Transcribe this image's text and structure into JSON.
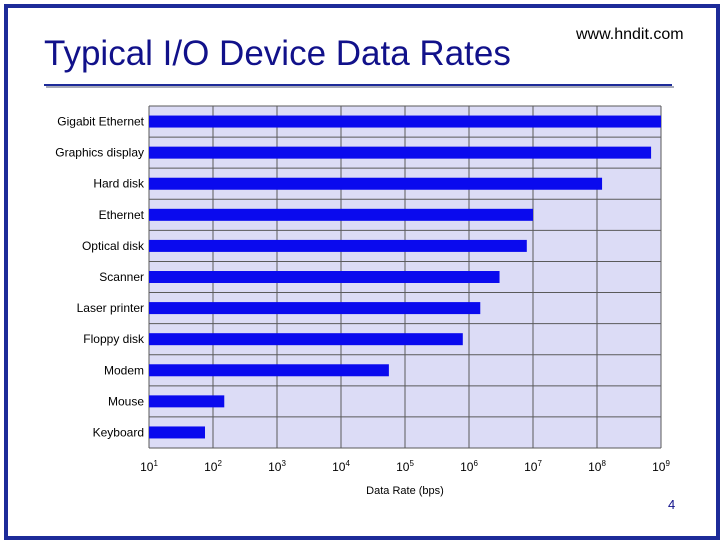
{
  "slide": {
    "title": "Typical I/O Device Data Rates",
    "website": "www.hndit.com",
    "page_number": "4"
  },
  "colors": {
    "bar": "#0a0aee",
    "plot_background": "#dcdcf6",
    "gridline": "#5a5a5a",
    "title": "#11118a",
    "border": "#1d2b99"
  },
  "chart_data": {
    "type": "bar",
    "orientation": "horizontal",
    "xlabel": "Data Rate (bps)",
    "ylabel": "",
    "x_scale": "log10",
    "xlim": [
      10,
      1000000000
    ],
    "x_tick_labels": [
      {
        "base": "10",
        "exp": "1"
      },
      {
        "base": "10",
        "exp": "2"
      },
      {
        "base": "10",
        "exp": "3"
      },
      {
        "base": "10",
        "exp": "4"
      },
      {
        "base": "10",
        "exp": "5"
      },
      {
        "base": "10",
        "exp": "6"
      },
      {
        "base": "10",
        "exp": "7"
      },
      {
        "base": "10",
        "exp": "8"
      },
      {
        "base": "10",
        "exp": "9"
      }
    ],
    "grid": true,
    "categories": [
      "Gigabit Ethernet",
      "Graphics display",
      "Hard disk",
      "Ethernet",
      "Optical disk",
      "Scanner",
      "Laser printer",
      "Floppy disk",
      "Modem",
      "Mouse",
      "Keyboard"
    ],
    "values": [
      1000000000,
      700000000,
      120000000,
      10000000,
      8000000,
      3000000,
      1500000,
      800000,
      56000,
      150,
      75
    ]
  }
}
